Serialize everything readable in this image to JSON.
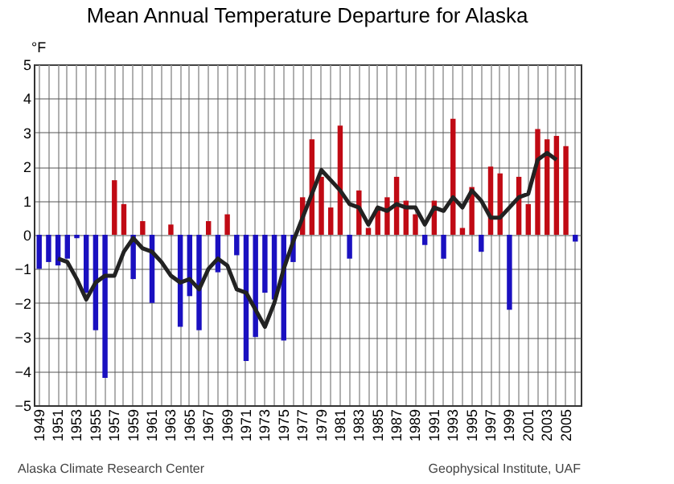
{
  "chart_data": {
    "type": "bar",
    "title": "Mean Annual Temperature Departure for Alaska",
    "ylabel": "°F",
    "categories": [
      "1949",
      null,
      "1951",
      null,
      "1953",
      null,
      "1955",
      null,
      "1957",
      null,
      "1959",
      null,
      "1961",
      null,
      "1963",
      null,
      "1965",
      null,
      "1967",
      null,
      "1969",
      null,
      "1971",
      null,
      "1973",
      null,
      "1975",
      null,
      "1977",
      null,
      "1979",
      null,
      "1981",
      null,
      "1983",
      null,
      "1985",
      null,
      "1987",
      null,
      "1989",
      null,
      "1991",
      null,
      "1993",
      null,
      "1995",
      null,
      "1997",
      null,
      "1999",
      null,
      "2001",
      null,
      "2003",
      null,
      "2005",
      null
    ],
    "series": [
      {
        "colors": [
          "#1a10c0",
          "#1a10c0",
          "#1a10c0",
          "#1a10c0",
          "#1a10c0",
          "#1a10c0",
          "#1a10c0",
          "#1a10c0",
          "#c00a14",
          "#c00a14",
          "#1a10c0",
          "#c00a14",
          "#1a10c0",
          "#c00a14",
          "#c00a14",
          "#1a10c0",
          "#1a10c0",
          "#1a10c0",
          "#c00a14",
          "#1a10c0",
          "#c00a14",
          "#1a10c0",
          "#1a10c0",
          "#1a10c0",
          "#1a10c0",
          "#1a10c0",
          "#1a10c0",
          "#1a10c0",
          "#c00a14",
          "#c00a14",
          "#c00a14",
          "#c00a14",
          "#c00a14",
          "#1a10c0",
          "#c00a14",
          "#c00a14",
          "#c00a14",
          "#c00a14",
          "#c00a14",
          "#c00a14",
          "#c00a14",
          "#1a10c0",
          "#c00a14",
          "#1a10c0",
          "#c00a14",
          "#c00a14",
          "#c00a14",
          "#1a10c0",
          "#c00a14",
          "#c00a14",
          "#1a10c0",
          "#c00a14",
          "#c00a14",
          "#c00a14",
          "#c00a14",
          "#c00a14",
          "#c00a14",
          "#1a10c0"
        ],
        "values": [
          -1.0,
          -0.8,
          -0.9,
          -0.7,
          -0.1,
          -1.7,
          -2.8,
          -4.2,
          1.6,
          0.9,
          -1.3,
          0.4,
          -2.0,
          0.0,
          0.3,
          -2.7,
          -1.8,
          -2.8,
          0.4,
          -1.1,
          0.6,
          -0.6,
          -3.7,
          -3.0,
          -1.7,
          -1.9,
          -3.1,
          -0.8,
          1.1,
          2.8,
          1.7,
          0.8,
          3.2,
          -0.7,
          1.3,
          0.2,
          0.8,
          1.1,
          1.7,
          1.0,
          0.6,
          -0.3,
          1.0,
          -0.7,
          3.4,
          0.2,
          1.4,
          -0.5,
          2.0,
          1.8,
          -2.2,
          1.7,
          0.9,
          3.1,
          2.8,
          2.9,
          2.6,
          -0.2
        ]
      },
      {
        "type": "line",
        "color": "#222222",
        "values": [
          null,
          null,
          -0.7,
          -0.8,
          -1.3,
          -1.9,
          -1.4,
          -1.2,
          -1.2,
          -0.5,
          -0.1,
          -0.4,
          -0.5,
          -0.8,
          -1.2,
          -1.4,
          -1.3,
          -1.6,
          -1.0,
          -0.7,
          -0.9,
          -1.6,
          -1.7,
          -2.2,
          -2.7,
          -2.0,
          -1.0,
          -0.2,
          0.5,
          1.2,
          1.9,
          1.6,
          1.3,
          0.9,
          0.8,
          0.3,
          0.8,
          0.7,
          0.9,
          0.8,
          0.8,
          0.3,
          0.8,
          0.7,
          1.1,
          0.8,
          1.3,
          1.0,
          0.5,
          0.5,
          0.8,
          1.1,
          1.2,
          2.2,
          2.4,
          2.2,
          null,
          null
        ]
      }
    ],
    "ylim": [
      -5,
      5
    ],
    "yticks": [
      -5,
      -4,
      -3,
      -2,
      -1,
      0,
      1,
      2,
      3,
      4,
      5
    ],
    "grid": true,
    "annotations": [
      "Alaska Climate Research Center",
      "Geophysical Institute, UAF"
    ]
  }
}
